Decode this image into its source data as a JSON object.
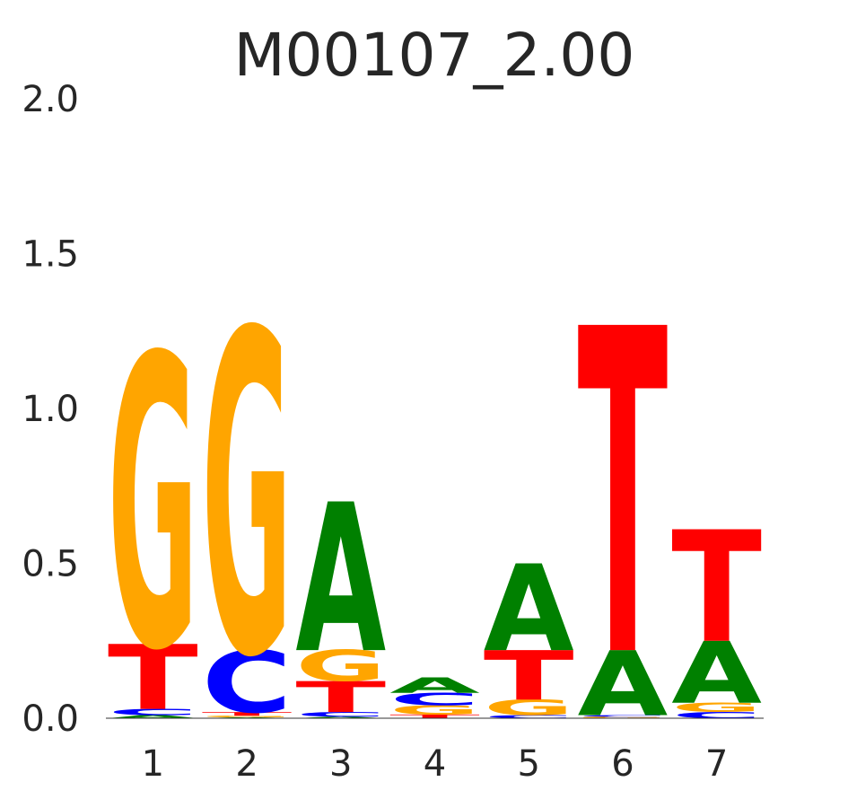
{
  "chart_data": {
    "type": "sequence-logo",
    "title": "M00107_2.00",
    "xlabel": "",
    "ylabel": "",
    "ylim": [
      0,
      2.0
    ],
    "yticks": [
      "0.0",
      "0.5",
      "1.0",
      "1.5",
      "2.0"
    ],
    "positions": [
      "1",
      "2",
      "3",
      "4",
      "5",
      "6",
      "7"
    ],
    "colors": {
      "A": "#008000",
      "C": "#0000ff",
      "G": "#ffa500",
      "T": "#ff0000"
    },
    "stacks": [
      [
        {
          "base": "A",
          "height": 0.01
        },
        {
          "base": "C",
          "height": 0.02
        },
        {
          "base": "T",
          "height": 0.21
        },
        {
          "base": "G",
          "height": 0.94
        }
      ],
      [
        {
          "base": "A",
          "height": 0.003
        },
        {
          "base": "G",
          "height": 0.005
        },
        {
          "base": "T",
          "height": 0.012
        },
        {
          "base": "C",
          "height": 0.2
        },
        {
          "base": "G",
          "height": 1.04
        }
      ],
      [
        {
          "base": "A",
          "height": 0.005
        },
        {
          "base": "C",
          "height": 0.015
        },
        {
          "base": "T",
          "height": 0.1
        },
        {
          "base": "G",
          "height": 0.1
        },
        {
          "base": "A",
          "height": 0.48
        }
      ],
      [
        {
          "base": "T",
          "height": 0.012
        },
        {
          "base": "G",
          "height": 0.03
        },
        {
          "base": "C",
          "height": 0.04
        },
        {
          "base": "A",
          "height": 0.05
        }
      ],
      [
        {
          "base": "C",
          "height": 0.01
        },
        {
          "base": "G",
          "height": 0.05
        },
        {
          "base": "T",
          "height": 0.16
        },
        {
          "base": "A",
          "height": 0.28
        }
      ],
      [
        {
          "base": "G",
          "height": 0.005
        },
        {
          "base": "C",
          "height": 0.005
        },
        {
          "base": "A",
          "height": 0.21
        },
        {
          "base": "T",
          "height": 1.05
        }
      ],
      [
        {
          "base": "C",
          "height": 0.02
        },
        {
          "base": "G",
          "height": 0.03
        },
        {
          "base": "A",
          "height": 0.2
        },
        {
          "base": "T",
          "height": 0.36
        }
      ]
    ]
  }
}
